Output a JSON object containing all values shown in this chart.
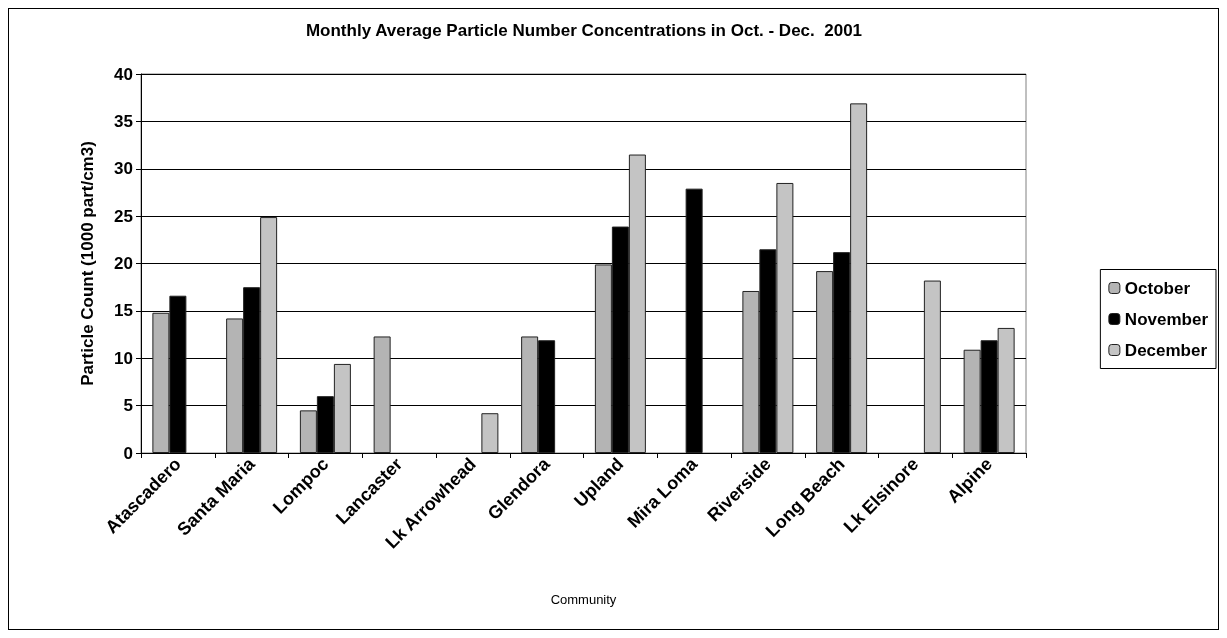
{
  "chart_data": {
    "type": "bar",
    "title": "Monthly Average Particle Number Concentrations in Oct. - Dec.  2001",
    "xlabel": "Community",
    "ylabel": "Particle Count (1000 part/cm3)",
    "categories": [
      "Atascadero",
      "Santa Maria",
      "Lompoc",
      "Lancaster",
      "Lk Arrowhead",
      "Glendora",
      "Upland",
      "Mira Loma",
      "Riverside",
      "Long Beach",
      "Lk Elsinore",
      "Alpine"
    ],
    "series": [
      {
        "name": "October",
        "color": "#b4b4b4",
        "values": [
          14.8,
          14.2,
          4.5,
          12.3,
          null,
          12.3,
          19.9,
          null,
          17.1,
          19.2,
          null,
          10.9
        ]
      },
      {
        "name": "November",
        "color": "#000000",
        "values": [
          16.6,
          17.5,
          6.0,
          null,
          null,
          11.9,
          23.9,
          27.9,
          21.5,
          21.2,
          null,
          11.9
        ]
      },
      {
        "name": "December",
        "color": "#c4c4c4",
        "values": [
          null,
          24.9,
          9.4,
          null,
          4.2,
          null,
          31.5,
          null,
          28.5,
          36.9,
          18.2,
          13.2
        ]
      }
    ],
    "ylim": [
      0,
      40
    ],
    "yticks": [
      0,
      5,
      10,
      15,
      20,
      25,
      30,
      35,
      40
    ],
    "grid": "y",
    "legend": "right"
  }
}
